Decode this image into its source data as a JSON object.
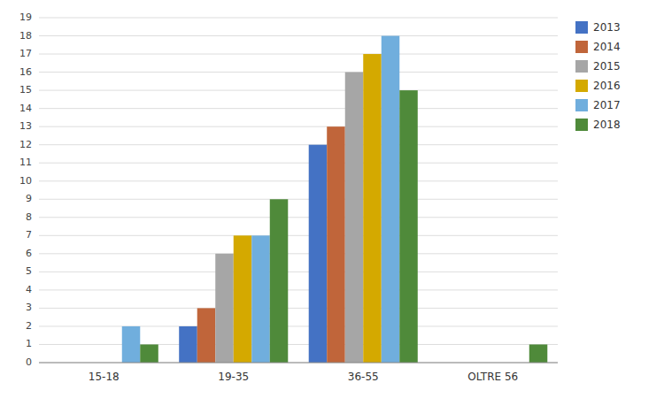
{
  "chart_data": {
    "type": "bar",
    "categories": [
      "15-18",
      "19-35",
      "36-55",
      "OLTRE 56"
    ],
    "series": [
      {
        "name": "2013",
        "color": "#4472C4",
        "values": [
          0,
          2,
          12,
          0
        ]
      },
      {
        "name": "2014",
        "color": "#C0653A",
        "values": [
          0,
          3,
          13,
          0
        ]
      },
      {
        "name": "2015",
        "color": "#A6A6A6",
        "values": [
          0,
          6,
          16,
          0
        ]
      },
      {
        "name": "2016",
        "color": "#D4A900",
        "values": [
          0,
          7,
          17,
          0
        ]
      },
      {
        "name": "2017",
        "color": "#70AEDD",
        "values": [
          2,
          7,
          18,
          0
        ]
      },
      {
        "name": "2018",
        "color": "#4F8A3A",
        "values": [
          1,
          9,
          15,
          1
        ]
      }
    ],
    "ylim": [
      0,
      19
    ],
    "yticks": [
      0,
      1,
      2,
      3,
      4,
      5,
      6,
      7,
      8,
      9,
      10,
      11,
      12,
      13,
      14,
      15,
      16,
      17,
      18,
      19
    ],
    "grid": true,
    "legend": "right"
  }
}
